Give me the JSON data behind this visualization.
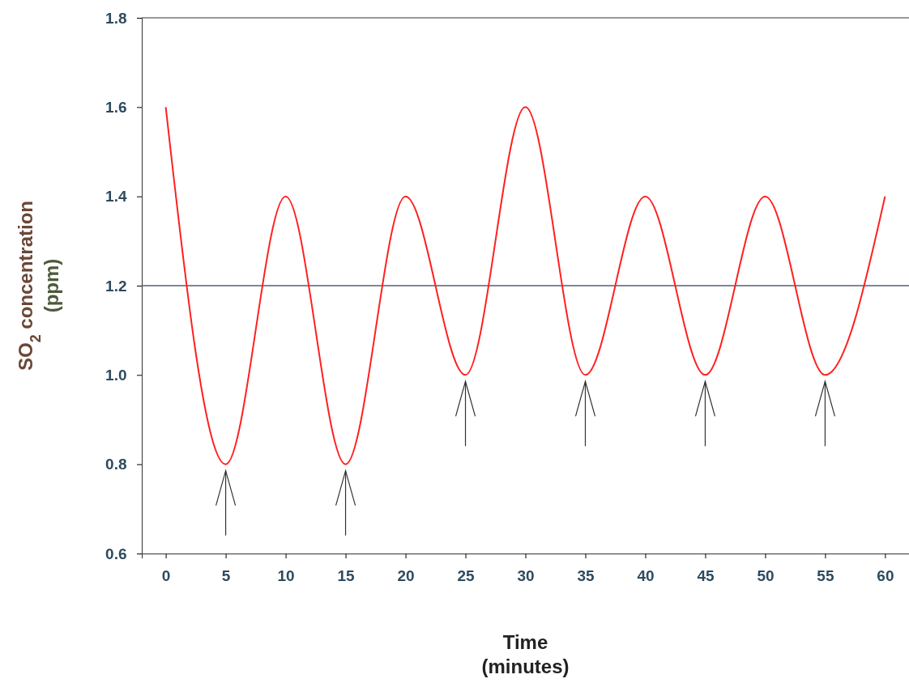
{
  "chart_data": {
    "type": "line",
    "xlabel": "Time\n(minutes)",
    "ylabel": "SO$_{2}$ concentration\n(ppm)",
    "x": [
      0,
      5,
      10,
      15,
      20,
      25,
      30,
      35,
      40,
      45,
      50,
      55,
      60
    ],
    "series": [
      {
        "color": "#ff2020",
        "values": [
          1.6,
          0.8,
          1.4,
          0.8,
          1.4,
          1.0,
          1.6,
          1.0,
          1.4,
          1.0,
          1.4,
          1.0,
          1.4
        ]
      }
    ],
    "xlim": [
      -2,
      62
    ],
    "ylim": [
      0.6,
      1.8
    ],
    "xticks": [
      0,
      5,
      10,
      15,
      20,
      25,
      30,
      35,
      40,
      45,
      50,
      55,
      60
    ],
    "yticks": [
      0.6,
      0.8,
      {
        "value": 1,
        "label": "1.0"
      },
      1.2,
      1.4,
      1.6,
      1.8
    ],
    "ref_lines": [
      {
        "axis": "y",
        "value": 1.2,
        "color": "#556070"
      }
    ],
    "marker": "none",
    "line_style": "solid",
    "grid": false
  }
}
